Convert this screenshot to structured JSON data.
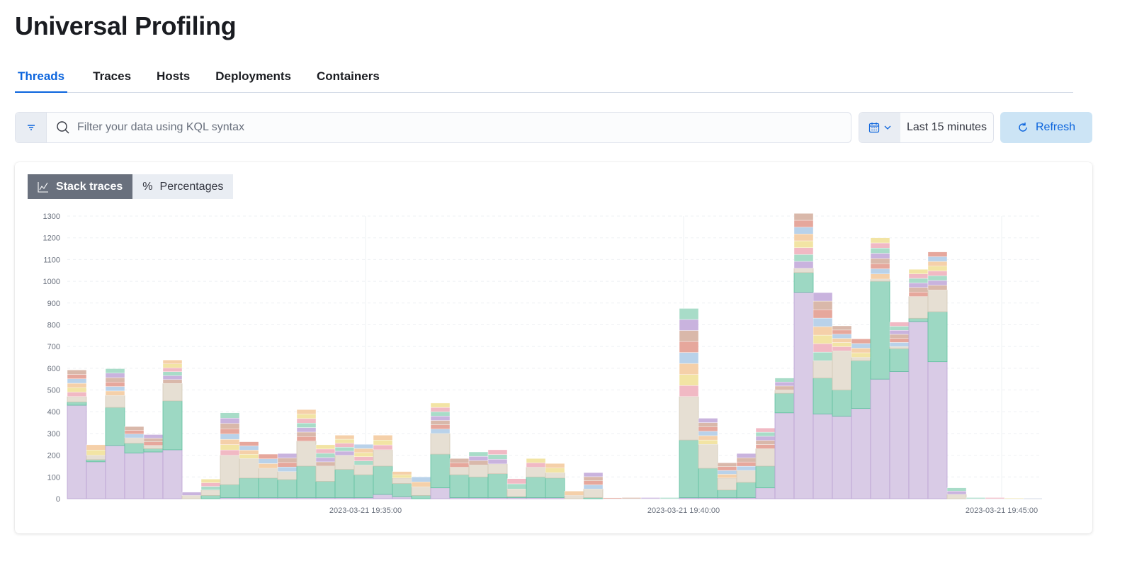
{
  "title": "Universal Profiling",
  "tabs": [
    {
      "label": "Threads",
      "active": true
    },
    {
      "label": "Traces"
    },
    {
      "label": "Hosts"
    },
    {
      "label": "Deployments"
    },
    {
      "label": "Containers"
    }
  ],
  "search": {
    "placeholder": "Filter your data using KQL syntax",
    "value": ""
  },
  "date_picker": {
    "value": "Last 15 minutes",
    "icon": "calendar-icon"
  },
  "refresh": {
    "label": "Refresh",
    "icon": "refresh-icon"
  },
  "accent": "#0b64dd",
  "view_toggle": [
    {
      "label": "Stack traces",
      "icon": "chart-line-icon",
      "selected": true
    },
    {
      "label": "Percentages",
      "icon": "percent-icon"
    }
  ],
  "chart_data": {
    "type": "bar",
    "stacked": true,
    "ylim": [
      0,
      1300
    ],
    "yticks": [
      0,
      100,
      200,
      300,
      400,
      500,
      600,
      700,
      800,
      900,
      1000,
      1100,
      1200,
      1300
    ],
    "xticks": [
      "2023-03-21 19:35:00",
      "2023-03-21 19:40:00",
      "2023-03-21 19:45:00"
    ],
    "grid": true,
    "series_colors": {
      "purple": "#d9cbe6",
      "green": "#9dd8c3",
      "beige": "#e6dfd3",
      "other": [
        "#f1b9c4",
        "#f2e4a4",
        "#f5d0a9",
        "#b9d2ea",
        "#e6a79c",
        "#d9b8aa",
        "#c9b3de",
        "#a8dcc8"
      ]
    },
    "series": [
      {
        "color": "purple",
        "values": [
          430,
          170,
          245,
          210,
          215,
          225,
          0,
          0,
          5,
          5,
          5,
          5,
          5,
          5,
          5,
          5,
          20,
          10,
          0,
          50,
          5,
          5,
          5,
          5,
          5,
          5,
          0,
          0,
          0,
          0,
          0,
          0,
          5,
          5,
          5,
          5,
          50,
          395,
          950,
          390,
          380,
          415,
          550,
          585,
          815,
          630,
          0,
          0,
          0,
          0
        ]
      },
      {
        "color": "green",
        "values": [
          15,
          10,
          175,
          45,
          15,
          225,
          0,
          15,
          60,
          90,
          90,
          83,
          145,
          75,
          130,
          105,
          130,
          60,
          15,
          155,
          105,
          95,
          110,
          5,
          95,
          90,
          0,
          5,
          0,
          0,
          0,
          0,
          265,
          135,
          35,
          70,
          100,
          90,
          90,
          165,
          120,
          220,
          450,
          105,
          15,
          230,
          0,
          0,
          0,
          0
        ]
      },
      {
        "color": "beige",
        "values": [
          25,
          20,
          55,
          25,
          15,
          80,
          15,
          25,
          135,
          90,
          45,
          37,
          115,
          70,
          65,
          45,
          75,
          25,
          40,
          95,
          35,
          55,
          45,
          35,
          45,
          25,
          15,
          40,
          0,
          0,
          0,
          0,
          200,
          110,
          55,
          55,
          80,
          15,
          20,
          80,
          180,
          15,
          10,
          10,
          100,
          100,
          20,
          0,
          0,
          0
        ]
      },
      {
        "color": "other",
        "values": [
          122,
          48,
          123,
          52,
          50,
          108,
          15,
          50,
          195,
          77,
          65,
          83,
          145,
          98,
          92,
          95,
          67,
          30,
          45,
          140,
          40,
          60,
          65,
          47,
          40,
          42,
          20,
          75,
          4,
          5,
          5,
          5,
          405,
          120,
          70,
          78,
          95,
          55,
          252,
          313,
          115,
          85,
          190,
          112,
          125,
          175,
          30,
          5,
          5,
          3
        ]
      }
    ]
  }
}
